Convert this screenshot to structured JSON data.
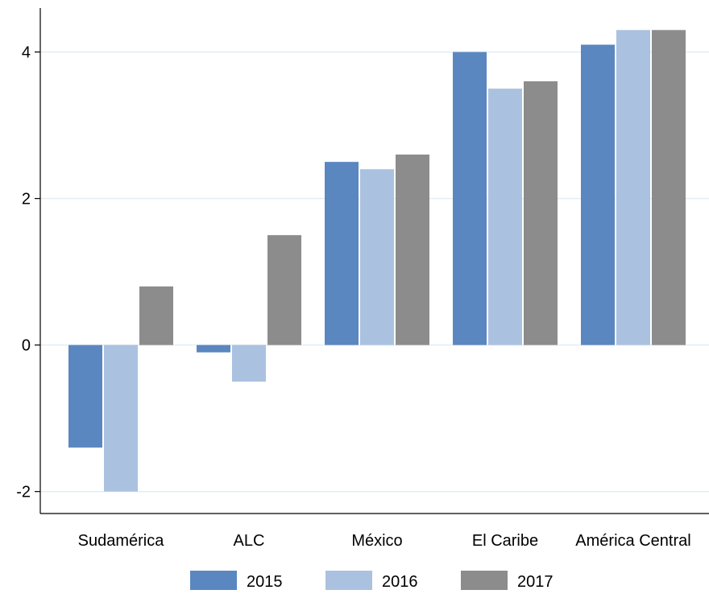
{
  "chart_data": {
    "type": "bar",
    "title": "",
    "xlabel": "",
    "ylabel": "",
    "categories": [
      "Sudamérica",
      "ALC",
      "México",
      "El Caribe",
      "América Central"
    ],
    "series": [
      {
        "name": "2015",
        "values": [
          -1.4,
          -0.1,
          2.5,
          4.0,
          4.1
        ],
        "color": "#5B87C0"
      },
      {
        "name": "2016",
        "values": [
          -2.0,
          -0.5,
          2.4,
          3.5,
          4.3
        ],
        "color": "#ABC1E0"
      },
      {
        "name": "2017",
        "values": [
          0.8,
          1.5,
          2.6,
          3.6,
          4.3
        ],
        "color": "#8C8C8C"
      }
    ],
    "ylim": [
      -2.3,
      4.6
    ],
    "yticks": [
      -2,
      0,
      2,
      4
    ],
    "ytick_labels": [
      "-2",
      "0",
      "2",
      "4"
    ],
    "grid": true,
    "gridline_color": "#E3EEF3",
    "legend_position": "bottom"
  }
}
